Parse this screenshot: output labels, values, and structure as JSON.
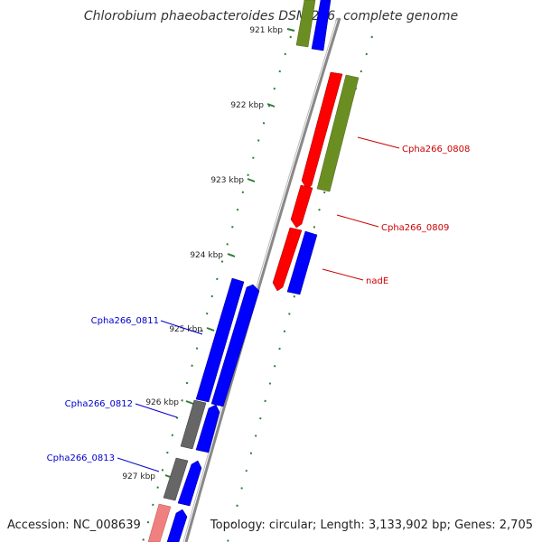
{
  "title": "Chlorobium phaeobacteroides DSM 266, complete genome",
  "accession_text": "Accession: NC_008639",
  "summary_text": "Topology: circular; Length: 3,133,902 bp; Genes: 2,705",
  "colors": {
    "backbone": "#888888",
    "forward_gene": "#0000ff",
    "reverse_gene": "#ff0000",
    "rna_olive": "#6b8e23",
    "grey_gene": "#666666",
    "pink_gene": "#f08080",
    "tick": "#2e7d32",
    "label_blue": "#0000cc",
    "label_red": "#cc0000"
  },
  "kbp_ticks": [
    "921 kbp",
    "922 kbp",
    "923 kbp",
    "924 kbp",
    "925 kbp",
    "926 kbp",
    "927 kbp"
  ],
  "gene_labels": [
    {
      "text": "Cpha266_0808",
      "strand": "reverse"
    },
    {
      "text": "Cpha266_0809",
      "strand": "reverse"
    },
    {
      "text": "nadE",
      "strand": "reverse"
    },
    {
      "text": "Cpha266_0811",
      "strand": "forward"
    },
    {
      "text": "Cpha266_0812",
      "strand": "forward"
    },
    {
      "text": "Cpha266_0813",
      "strand": "forward"
    }
  ]
}
